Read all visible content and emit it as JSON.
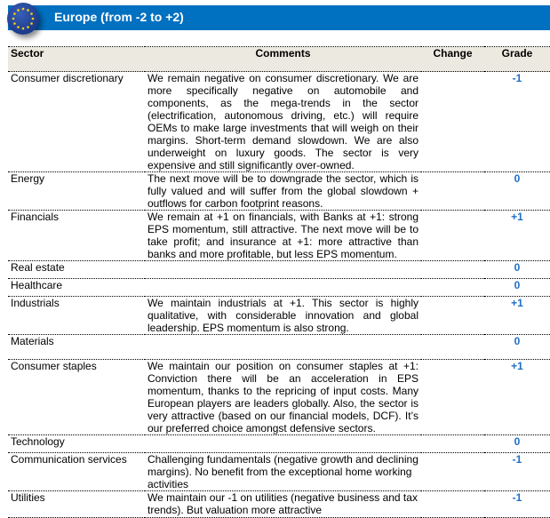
{
  "header": {
    "title": "Europe (from -2 to +2)",
    "icon": "eu-flag-icon",
    "accent": "#0070c0"
  },
  "table": {
    "columns": {
      "sector": "Sector",
      "comments": "Comments",
      "change": "Change",
      "grade": "Grade"
    },
    "grade_color": "#1f6fc5",
    "rows": [
      {
        "sector": "Consumer discretionary",
        "comment": "We remain negative on consumer discretionary. We are more specifically negative on automobile and components, as the mega-trends in the sector (electrification, autonomous driving, etc.) will require OEMs to make large investments that will weigh on their margins. Short-term demand slowdown. We are also underweight on luxury goods. The sector is very expensive and still significantly over-owned.",
        "change": "",
        "grade": "-1"
      },
      {
        "sector": "Energy",
        "comment": "The next move will be to downgrade the sector, which is fully valued and will suffer from the global slowdown + outflows for carbon footprint reasons.",
        "change": "",
        "grade": "0"
      },
      {
        "sector": "Financials",
        "comment": "We remain at +1 on financials, with Banks at +1: strong EPS momentum, still attractive. The next move will be to take profit; and insurance at +1: more attractive than banks and more profitable, but less EPS momentum.",
        "change": "",
        "grade": "+1"
      },
      {
        "sector": "Real estate",
        "comment": "",
        "change": "",
        "grade": "0"
      },
      {
        "sector": "Healthcare",
        "comment": "",
        "change": "",
        "grade": "0"
      },
      {
        "sector": "Industrials",
        "comment": "We maintain industrials at +1. This sector is highly qualitative, with considerable innovation and global leadership. EPS momentum is also strong.",
        "change": "",
        "grade": "+1"
      },
      {
        "sector": "Materials",
        "comment": "",
        "change": "",
        "grade": "0"
      },
      {
        "sector": "Consumer staples",
        "comment": "We maintain our position on consumer staples at +1: Conviction there will be an acceleration in EPS momentum, thanks to the repricing of input costs. Many European players are leaders globally. Also, the sector is very attractive (based on our financial models, DCF). It’s our preferred choice amongst defensive sectors.",
        "change": "",
        "grade": "+1"
      },
      {
        "sector": "Technology",
        "comment": "",
        "change": "",
        "grade": "0"
      },
      {
        "sector": "Communication services",
        "comment": "Challenging fundamentals (negative growth and declining margins). No benefit from the exceptional home working activities",
        "change": "",
        "grade": "-1"
      },
      {
        "sector": "Utilities",
        "comment": "We maintain our -1 on utilities (negative business and tax trends). But valuation more attractive",
        "change": "",
        "grade": "-1"
      }
    ]
  }
}
